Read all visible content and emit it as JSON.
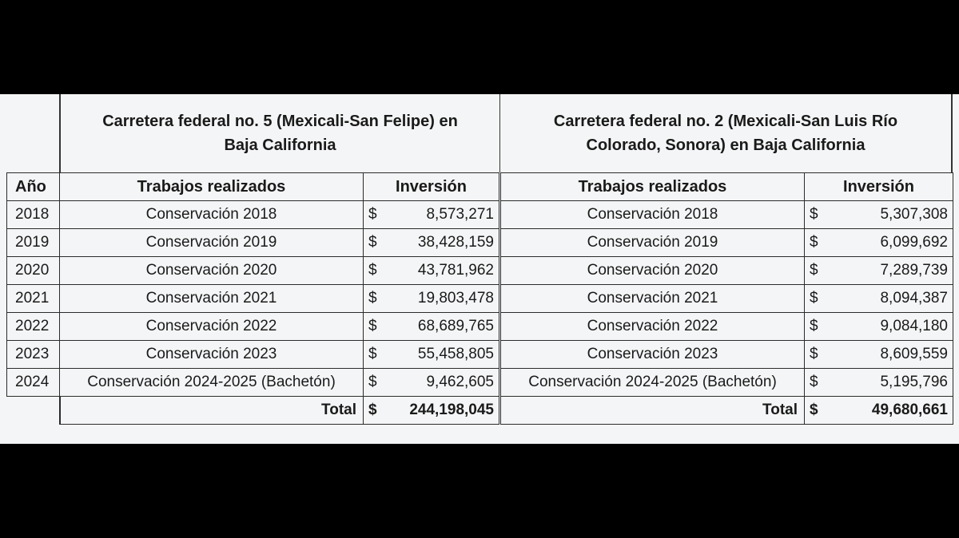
{
  "left": {
    "title_line1": "Carretera federal no. 5 (Mexicali-San Felipe) en",
    "title_line2": "Baja California",
    "headers": {
      "year": "Año",
      "work": "Trabajos realizados",
      "investment": "Inversión"
    },
    "rows": [
      {
        "year": "2018",
        "work": "Conservación 2018",
        "currency": "$",
        "amount": "8,573,271"
      },
      {
        "year": "2019",
        "work": "Conservación 2019",
        "currency": "$",
        "amount": "38,428,159"
      },
      {
        "year": "2020",
        "work": "Conservación 2020",
        "currency": "$",
        "amount": "43,781,962"
      },
      {
        "year": "2021",
        "work": "Conservación 2021",
        "currency": "$",
        "amount": "19,803,478"
      },
      {
        "year": "2022",
        "work": "Conservación 2022",
        "currency": "$",
        "amount": "68,689,765"
      },
      {
        "year": "2023",
        "work": "Conservación 2023",
        "currency": "$",
        "amount": "55,458,805"
      },
      {
        "year": "2024",
        "work": "Conservación 2024-2025 (Bachetón)",
        "currency": "$",
        "amount": "9,462,605"
      }
    ],
    "total": {
      "label": "Total",
      "currency": "$",
      "amount": "244,198,045"
    }
  },
  "right": {
    "title_line1": "Carretera federal no. 2 (Mexicali-San Luis Río",
    "title_line2": "Colorado, Sonora) en Baja California",
    "headers": {
      "work": "Trabajos realizados",
      "investment": "Inversión"
    },
    "rows": [
      {
        "work": "Conservación 2018",
        "currency": "$",
        "amount": "5,307,308"
      },
      {
        "work": "Conservación 2019",
        "currency": "$",
        "amount": "6,099,692"
      },
      {
        "work": "Conservación 2020",
        "currency": "$",
        "amount": "7,289,739"
      },
      {
        "work": "Conservación 2021",
        "currency": "$",
        "amount": "8,094,387"
      },
      {
        "work": "Conservación 2022",
        "currency": "$",
        "amount": "9,084,180"
      },
      {
        "work": "Conservación 2023",
        "currency": "$",
        "amount": "8,609,559"
      },
      {
        "work": "Conservación 2024-2025 (Bachetón)",
        "currency": "$",
        "amount": "5,195,796"
      }
    ],
    "total": {
      "label": "Total",
      "currency": "$",
      "amount": "49,680,661"
    }
  }
}
